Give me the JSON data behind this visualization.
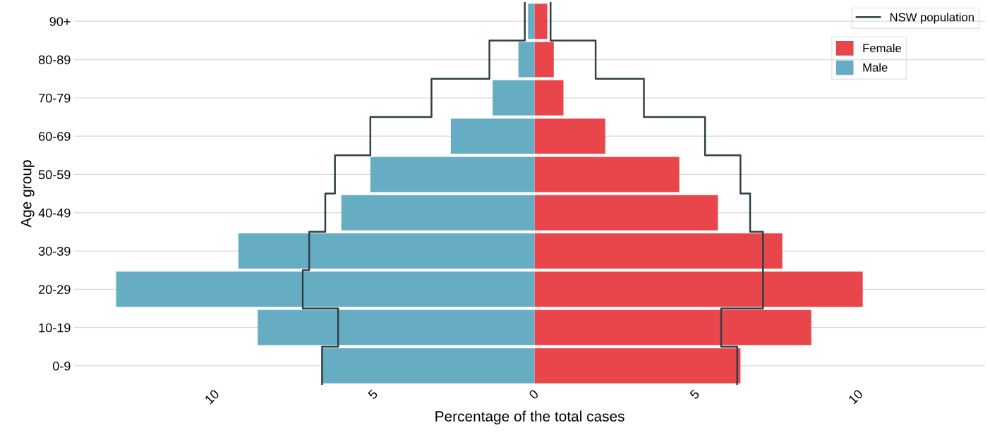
{
  "chart_data": {
    "type": "bar",
    "orientation": "horizontal",
    "xlabel": "Percentage of the total cases",
    "ylabel": "Age group",
    "categories": [
      "90+",
      "80-89",
      "70-79",
      "60-69",
      "50-59",
      "40-49",
      "30-39",
      "20-29",
      "10-19",
      "0-9"
    ],
    "series": [
      {
        "name": "NSW population",
        "type": "step",
        "color": "#2f4048",
        "values": [
          0.5,
          1.9,
          3.4,
          5.3,
          6.4,
          6.7,
          7.1,
          7.1,
          5.8,
          6.3
        ]
      },
      {
        "type": "step",
        "color": "#2f4048",
        "values": [
          -0.3,
          -1.4,
          -3.2,
          -5.1,
          -6.2,
          -6.5,
          -7.0,
          -7.2,
          -6.1,
          -6.6
        ]
      },
      {
        "name": "Female",
        "color": "#e8464a",
        "values": [
          0.4,
          0.6,
          0.9,
          2.2,
          4.5,
          5.7,
          7.7,
          10.2,
          8.6,
          6.4
        ]
      },
      {
        "name": "Male",
        "color": "#66adc3",
        "values": [
          -0.2,
          -0.5,
          -1.3,
          -2.6,
          -5.1,
          -6.0,
          -9.2,
          -13.0,
          -8.6,
          -6.6
        ]
      }
    ],
    "xlim": [
      -14.3,
      14
    ],
    "xticks": [
      {
        "value": -10,
        "label": "10"
      },
      {
        "value": -5,
        "label": "5"
      },
      0,
      5,
      {
        "value": 10,
        "label": "10"
      }
    ],
    "stacked": true,
    "grid": "y",
    "legend": "top right"
  }
}
